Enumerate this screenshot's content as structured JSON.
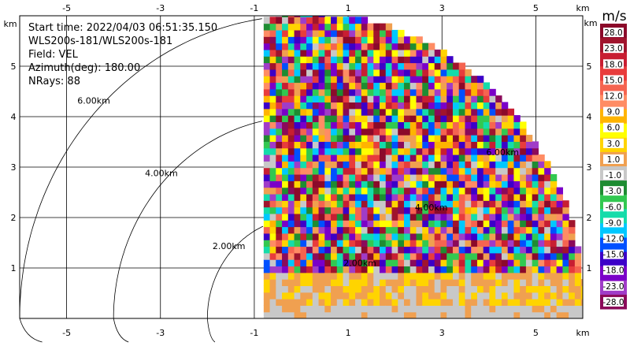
{
  "info": {
    "start_time": "Start time: 2022/04/03 06:51:35.150",
    "radar": "WLS200s-181/WLS200s-181",
    "field": "Field: VEL",
    "azimuth": "Azimuth(deg): 180.00",
    "nrays": "NRays: 88"
  },
  "axis_unit": "km",
  "chart_data": {
    "type": "heatmap",
    "title": "",
    "xlabel": "km",
    "ylabel": "km",
    "xlim": [
      -6.0,
      6.0
    ],
    "ylim": [
      0.0,
      6.0
    ],
    "x_ticks": [
      -5,
      -3,
      -1,
      1,
      3,
      5
    ],
    "y_ticks": [
      1,
      2,
      3,
      4,
      5
    ],
    "range_rings": [
      {
        "radius_km": 2.0,
        "label": "2.00km"
      },
      {
        "radius_km": 4.0,
        "label": "4.00km"
      },
      {
        "radius_km": 6.0,
        "label": "6.00km"
      }
    ],
    "inner_ring_labels": [
      {
        "radius_km": 2.0,
        "label": "2.00km"
      },
      {
        "radius_km": 4.0,
        "label": "4.00km"
      },
      {
        "radius_km": 6.0,
        "label": "6.00km"
      }
    ],
    "data_sector": {
      "x_min_km": -0.8,
      "max_range_km": 6.0,
      "near_ground_band_km": [
        0.0,
        0.85
      ]
    },
    "colorbar": {
      "unit": "m/s",
      "labels": [
        "28.0",
        "23.0",
        "18.0",
        "15.0",
        "12.0",
        "9.0",
        "6.0",
        "3.0",
        "1.0",
        "-1.0",
        "-3.0",
        "-6.0",
        "-9.0",
        "-12.0",
        "-15.0",
        "-18.0",
        "-23.0",
        "-28.0"
      ],
      "colors": [
        "#8b0a2a",
        "#a0142d",
        "#c81e32",
        "#e83c3c",
        "#f56450",
        "#ff8c64",
        "#ffb400",
        "#ffff00",
        "#ffd400",
        "#f0a050",
        "#c8c8c8",
        "#1e8c32",
        "#32c850",
        "#14dcaa",
        "#00c8ff",
        "#0050ff",
        "#3c00c8",
        "#7a00c8",
        "#a03cc8",
        "#8b0a5a"
      ]
    }
  }
}
